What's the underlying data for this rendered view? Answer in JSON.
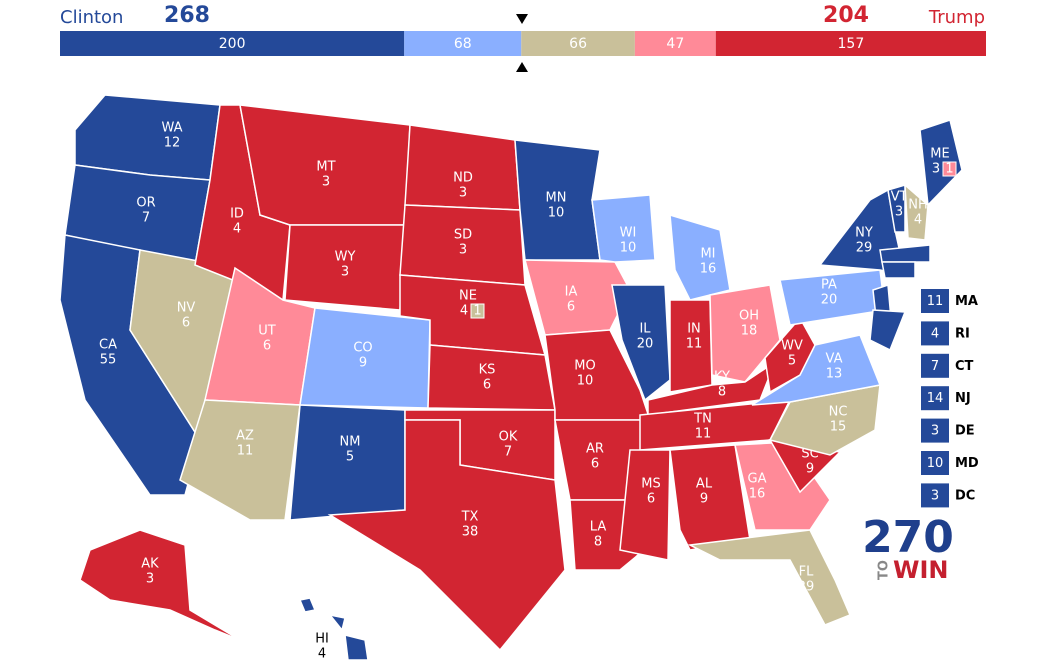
{
  "header": {
    "left_name": "Clinton",
    "left_total": 268,
    "right_name": "Trump",
    "right_total": 204
  },
  "bar": {
    "segments": [
      {
        "value": 200,
        "color": "#244999"
      },
      {
        "value": 68,
        "color": "#8aafff"
      },
      {
        "value": 66,
        "color": "#c9c09a"
      },
      {
        "value": 47,
        "color": "#ff8a98"
      },
      {
        "value": 157,
        "color": "#d22532"
      }
    ]
  },
  "states": [
    {
      "abbr": "WA",
      "ev": 12,
      "color": "#244999"
    },
    {
      "abbr": "OR",
      "ev": 7,
      "color": "#244999"
    },
    {
      "abbr": "CA",
      "ev": 55,
      "color": "#244999"
    },
    {
      "abbr": "NV",
      "ev": 6,
      "color": "#c9c09a"
    },
    {
      "abbr": "ID",
      "ev": 4,
      "color": "#d22532"
    },
    {
      "abbr": "MT",
      "ev": 3,
      "color": "#d22532"
    },
    {
      "abbr": "WY",
      "ev": 3,
      "color": "#d22532"
    },
    {
      "abbr": "UT",
      "ev": 6,
      "color": "#ff8a98"
    },
    {
      "abbr": "AZ",
      "ev": 11,
      "color": "#c9c09a"
    },
    {
      "abbr": "CO",
      "ev": 9,
      "color": "#8aafff"
    },
    {
      "abbr": "NM",
      "ev": 5,
      "color": "#244999"
    },
    {
      "abbr": "ND",
      "ev": 3,
      "color": "#d22532"
    },
    {
      "abbr": "SD",
      "ev": 3,
      "color": "#d22532"
    },
    {
      "abbr": "NE",
      "ev": 4,
      "color": "#d22532",
      "districts": [
        {
          "value": 1,
          "color": "#c9c09a"
        }
      ]
    },
    {
      "abbr": "KS",
      "ev": 6,
      "color": "#d22532"
    },
    {
      "abbr": "OK",
      "ev": 7,
      "color": "#d22532"
    },
    {
      "abbr": "TX",
      "ev": 38,
      "color": "#d22532"
    },
    {
      "abbr": "MN",
      "ev": 10,
      "color": "#244999"
    },
    {
      "abbr": "IA",
      "ev": 6,
      "color": "#ff8a98"
    },
    {
      "abbr": "MO",
      "ev": 10,
      "color": "#d22532"
    },
    {
      "abbr": "AR",
      "ev": 6,
      "color": "#d22532"
    },
    {
      "abbr": "LA",
      "ev": 8,
      "color": "#d22532"
    },
    {
      "abbr": "WI",
      "ev": 10,
      "color": "#8aafff"
    },
    {
      "abbr": "IL",
      "ev": 20,
      "color": "#244999"
    },
    {
      "abbr": "MI",
      "ev": 16,
      "color": "#8aafff"
    },
    {
      "abbr": "IN",
      "ev": 11,
      "color": "#d22532"
    },
    {
      "abbr": "OH",
      "ev": 18,
      "color": "#ff8a98"
    },
    {
      "abbr": "KY",
      "ev": 8,
      "color": "#d22532"
    },
    {
      "abbr": "TN",
      "ev": 11,
      "color": "#d22532"
    },
    {
      "abbr": "MS",
      "ev": 6,
      "color": "#d22532"
    },
    {
      "abbr": "AL",
      "ev": 9,
      "color": "#d22532"
    },
    {
      "abbr": "GA",
      "ev": 16,
      "color": "#ff8a98"
    },
    {
      "abbr": "FL",
      "ev": 29,
      "color": "#c9c09a"
    },
    {
      "abbr": "SC",
      "ev": 9,
      "color": "#d22532"
    },
    {
      "abbr": "NC",
      "ev": 15,
      "color": "#c9c09a"
    },
    {
      "abbr": "VA",
      "ev": 13,
      "color": "#8aafff"
    },
    {
      "abbr": "WV",
      "ev": 5,
      "color": "#d22532"
    },
    {
      "abbr": "PA",
      "ev": 20,
      "color": "#8aafff"
    },
    {
      "abbr": "NY",
      "ev": 29,
      "color": "#244999"
    },
    {
      "abbr": "ME",
      "ev": 3,
      "color": "#244999",
      "districts": [
        {
          "value": 1,
          "color": "#ff8a98"
        }
      ]
    },
    {
      "abbr": "VT",
      "ev": 3,
      "color": "#244999"
    },
    {
      "abbr": "NH",
      "ev": 4,
      "color": "#c9c09a"
    },
    {
      "abbr": "AK",
      "ev": 3,
      "color": "#d22532"
    },
    {
      "abbr": "HI",
      "ev": 4,
      "color": "#244999"
    }
  ],
  "small_states": [
    {
      "abbr": "MA",
      "ev": 11,
      "color": "#244999"
    },
    {
      "abbr": "RI",
      "ev": 4,
      "color": "#244999"
    },
    {
      "abbr": "CT",
      "ev": 7,
      "color": "#244999"
    },
    {
      "abbr": "NJ",
      "ev": 14,
      "color": "#244999"
    },
    {
      "abbr": "DE",
      "ev": 3,
      "color": "#244999"
    },
    {
      "abbr": "MD",
      "ev": 10,
      "color": "#244999"
    },
    {
      "abbr": "DC",
      "ev": 3,
      "color": "#244999"
    }
  ],
  "logo": {
    "number": "270",
    "to": "TO",
    "win": "WIN"
  }
}
